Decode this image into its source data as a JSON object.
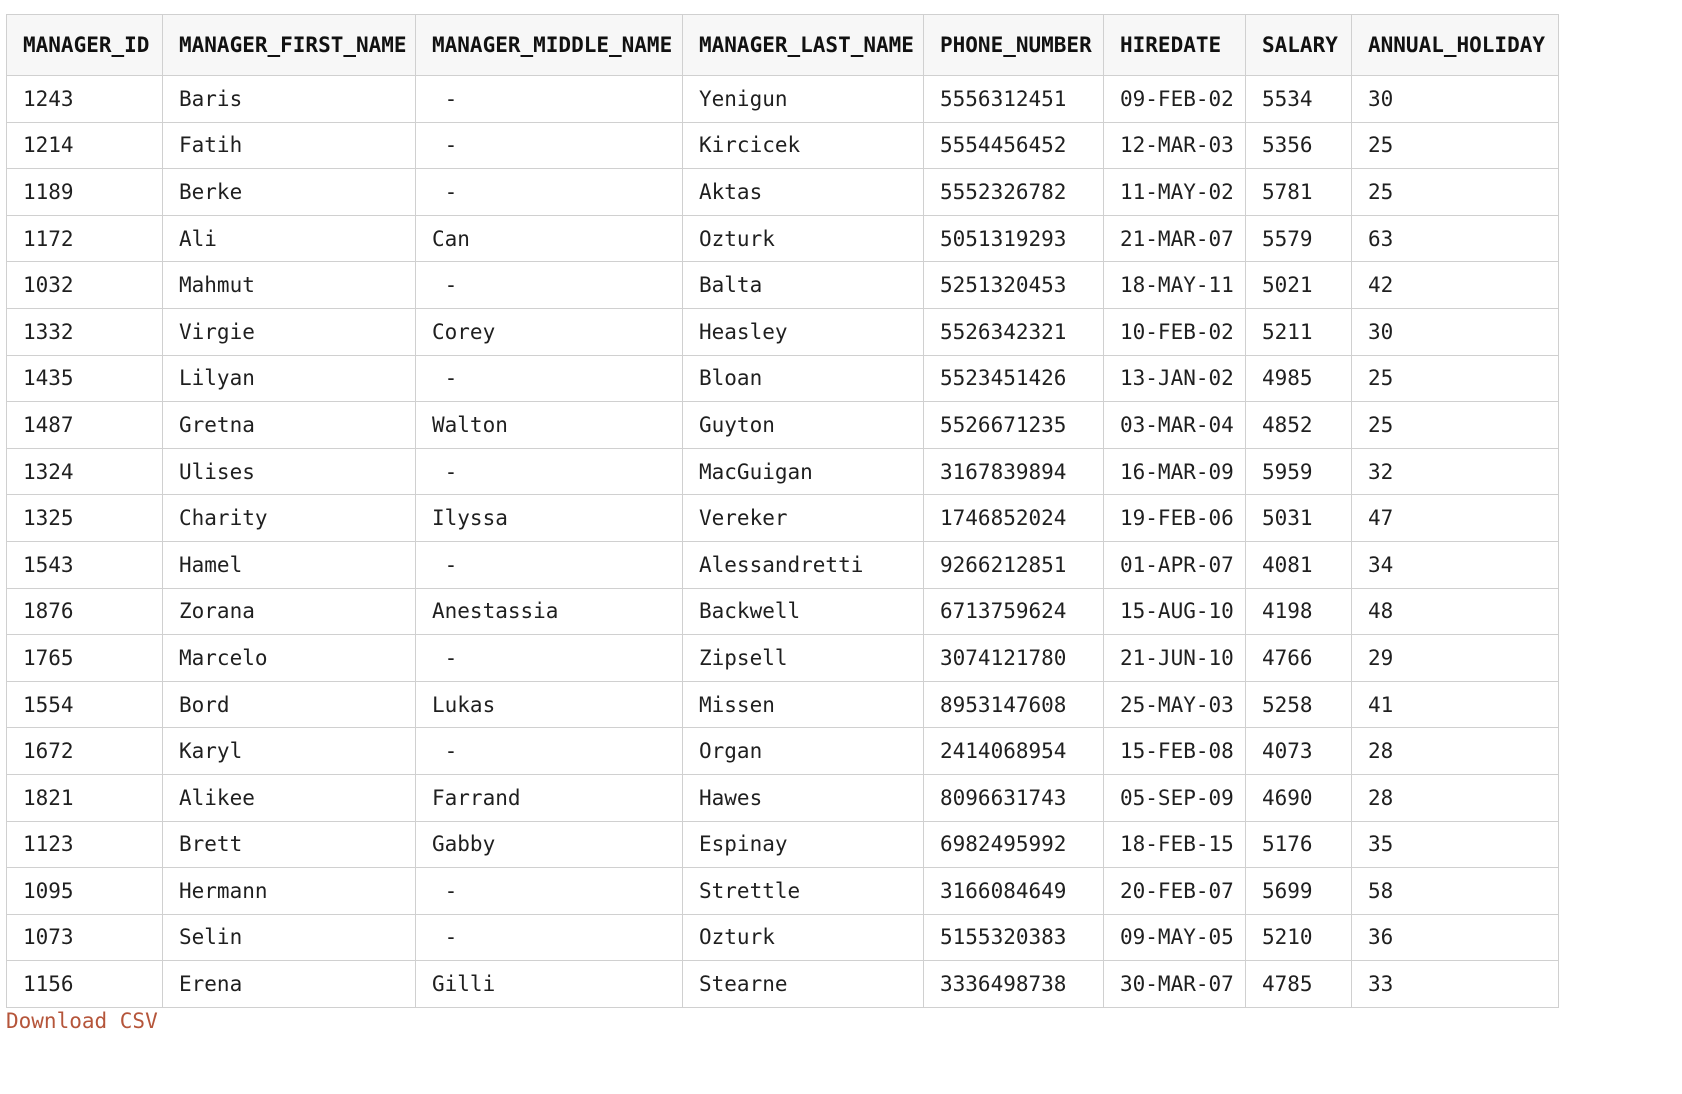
{
  "table": {
    "headers": [
      "MANAGER_ID",
      "MANAGER_FIRST_NAME",
      "MANAGER_MIDDLE_NAME",
      "MANAGER_LAST_NAME",
      "PHONE_NUMBER",
      "HIREDATE",
      "SALARY",
      "ANNUAL_HOLIDAY"
    ],
    "rows": [
      [
        "1243",
        "Baris",
        " -",
        "Yenigun",
        "5556312451",
        "09-FEB-02",
        "5534",
        "30"
      ],
      [
        "1214",
        "Fatih",
        " -",
        "Kircicek",
        "5554456452",
        "12-MAR-03",
        "5356",
        "25"
      ],
      [
        "1189",
        "Berke",
        " -",
        "Aktas",
        "5552326782",
        "11-MAY-02",
        "5781",
        "25"
      ],
      [
        "1172",
        "Ali",
        "Can",
        "Ozturk",
        "5051319293",
        "21-MAR-07",
        "5579",
        "63"
      ],
      [
        "1032",
        "Mahmut",
        " -",
        "Balta",
        "5251320453",
        "18-MAY-11",
        "5021",
        "42"
      ],
      [
        "1332",
        "Virgie",
        "Corey",
        "Heasley",
        "5526342321",
        "10-FEB-02",
        "5211",
        "30"
      ],
      [
        "1435",
        "Lilyan",
        " -",
        "Bloan",
        "5523451426",
        "13-JAN-02",
        "4985",
        "25"
      ],
      [
        "1487",
        "Gretna",
        "Walton",
        "Guyton",
        "5526671235",
        "03-MAR-04",
        "4852",
        "25"
      ],
      [
        "1324",
        "Ulises",
        " -",
        "MacGuigan",
        "3167839894",
        "16-MAR-09",
        "5959",
        "32"
      ],
      [
        "1325",
        "Charity",
        "Ilyssa",
        "Vereker",
        "1746852024",
        "19-FEB-06",
        "5031",
        "47"
      ],
      [
        "1543",
        "Hamel",
        " -",
        "Alessandretti",
        "9266212851",
        "01-APR-07",
        "4081",
        "34"
      ],
      [
        "1876",
        "Zorana",
        "Anestassia",
        "Backwell",
        "6713759624",
        "15-AUG-10",
        "4198",
        "48"
      ],
      [
        "1765",
        "Marcelo",
        " -",
        "Zipsell",
        "3074121780",
        "21-JUN-10",
        "4766",
        "29"
      ],
      [
        "1554",
        "Bord",
        "Lukas",
        "Missen",
        "8953147608",
        "25-MAY-03",
        "5258",
        "41"
      ],
      [
        "1672",
        "Karyl",
        " -",
        "Organ",
        "2414068954",
        "15-FEB-08",
        "4073",
        "28"
      ],
      [
        "1821",
        "Alikee",
        "Farrand",
        "Hawes",
        "8096631743",
        "05-SEP-09",
        "4690",
        "28"
      ],
      [
        "1123",
        "Brett",
        "Gabby",
        "Espinay",
        "6982495992",
        "18-FEB-15",
        "5176",
        "35"
      ],
      [
        "1095",
        "Hermann",
        " -",
        "Strettle",
        "3166084649",
        "20-FEB-07",
        "5699",
        "58"
      ],
      [
        "1073",
        "Selin",
        " -",
        "Ozturk",
        "5155320383",
        "09-MAY-05",
        "5210",
        "36"
      ],
      [
        "1156",
        "Erena",
        "Gilli",
        "Stearne",
        "3336498738",
        "30-MAR-07",
        "4785",
        "33"
      ]
    ]
  },
  "download_link_label": "Download CSV",
  "colors": {
    "link": "#b5553a",
    "header_bg": "#f7f7f7",
    "border": "#d0d0d0"
  }
}
